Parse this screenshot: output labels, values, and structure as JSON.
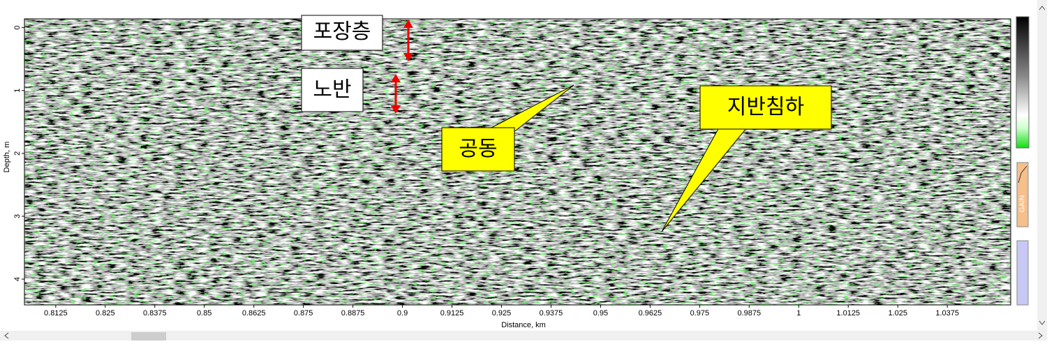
{
  "chart_data": {
    "type": "radargram",
    "xlabel": "Distance, km",
    "ylabel": "Depth, m",
    "xlim": [
      0.8046,
      1.0535
    ],
    "ylim": [
      -0.14,
      4.41
    ],
    "xticks": [
      0.8125,
      0.825,
      0.8375,
      0.85,
      0.8625,
      0.875,
      0.8875,
      0.9,
      0.9125,
      0.925,
      0.9375,
      0.95,
      0.9625,
      0.975,
      0.9875,
      1,
      1.0125,
      1.025,
      1.0375
    ],
    "yticks": [
      0,
      1,
      2,
      3,
      4
    ],
    "annotations": [
      "포장층",
      "노반",
      "공동",
      "지반침하"
    ]
  },
  "toolbar": {
    "gain": "GAIN"
  }
}
